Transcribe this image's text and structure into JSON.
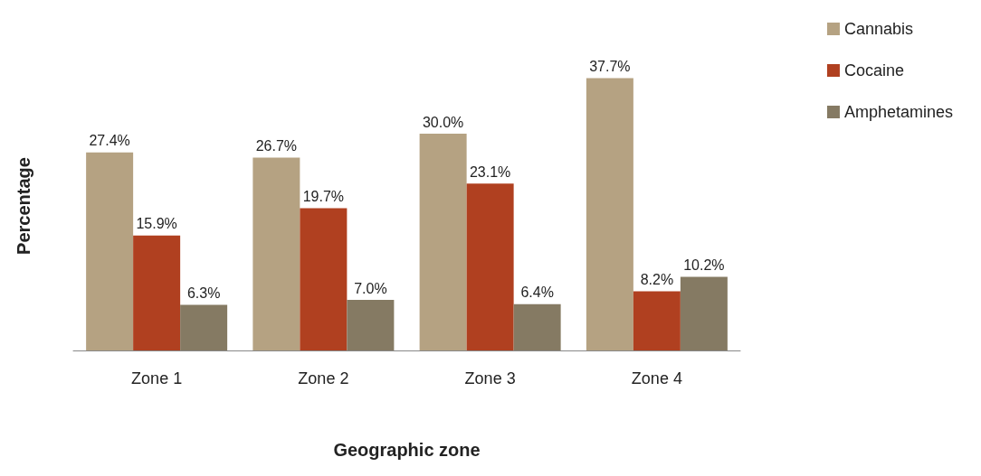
{
  "chart_data": {
    "type": "bar",
    "xlabel": "Geographic zone",
    "ylabel": "Percentage",
    "categories": [
      "Zone 1",
      "Zone 2",
      "Zone 3",
      "Zone 4"
    ],
    "series": [
      {
        "name": "Cannabis",
        "color": "#b5a282",
        "values": [
          27.4,
          26.7,
          30.0,
          37.7
        ],
        "value_labels": [
          "27.4%",
          "26.7%",
          "30.0%",
          "37.7%"
        ]
      },
      {
        "name": "Cocaine",
        "color": "#b04020",
        "values": [
          15.9,
          19.7,
          23.1,
          8.2
        ],
        "value_labels": [
          "15.9%",
          "19.7%",
          "23.1%",
          "8.2%"
        ]
      },
      {
        "name": "Amphetamines",
        "color": "#857a63",
        "values": [
          6.3,
          7.0,
          6.4,
          10.2
        ],
        "value_labels": [
          "6.3%",
          "7.0%",
          "6.4%",
          "10.2%"
        ]
      }
    ],
    "legend": "top right",
    "grid": false,
    "tick_labels": "x"
  }
}
